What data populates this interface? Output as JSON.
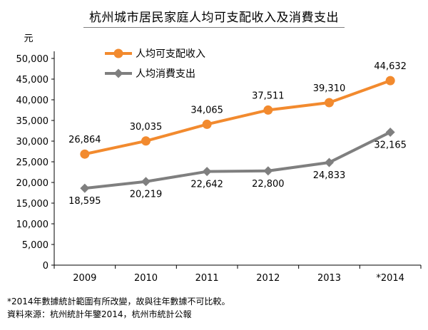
{
  "chart_data": {
    "type": "line",
    "title": "杭州城市居民家庭人均可支配收入及消費支出",
    "ylabel": "元",
    "xlabel": "",
    "categories": [
      "2009",
      "2010",
      "2011",
      "2012",
      "2013",
      "*2014"
    ],
    "ylim": [
      0,
      50000
    ],
    "ytick_labels": [
      "0",
      "5,000",
      "10,000",
      "15,000",
      "20,000",
      "25,000",
      "30,000",
      "35,000",
      "40,000",
      "45,000",
      "50,000"
    ],
    "grid": false,
    "legend_position": "top-left",
    "series": [
      {
        "name": "人均可支配收入",
        "color": "#F28A2E",
        "marker": "circle",
        "values": [
          26864,
          30035,
          34065,
          37511,
          39310,
          44632
        ],
        "labels": [
          "26,864",
          "30,035",
          "34,065",
          "37,511",
          "39,310",
          "44,632"
        ]
      },
      {
        "name": "人均消費支出",
        "color": "#7F7F7F",
        "marker": "diamond",
        "values": [
          18595,
          20219,
          22642,
          22800,
          24833,
          32165
        ],
        "labels": [
          "18,595",
          "20,219",
          "22,642",
          "22,800",
          "24,833",
          "32,165"
        ]
      }
    ]
  },
  "notes": [
    "*2014年數據統計範圍有所改變，故與往年數據不可比較。",
    "資料來源：杭州統計年鑒2014，杭州市統計公報"
  ]
}
